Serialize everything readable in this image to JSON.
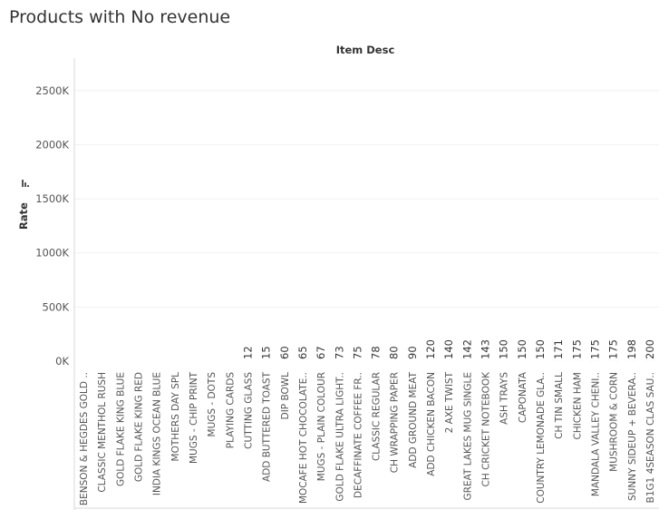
{
  "title": "Products with No revenue",
  "chart_data": {
    "type": "bar",
    "title": "Products with No revenue",
    "column_header": "Item Desc",
    "xlabel": "",
    "ylabel": "Rate",
    "ylim": [
      0,
      2800000
    ],
    "yticks": [
      0,
      500000,
      1000000,
      1500000,
      2000000,
      2500000
    ],
    "ytick_labels": [
      "0K",
      "500K",
      "1000K",
      "1500K",
      "2000K",
      "2500K"
    ],
    "grid": true,
    "categories": [
      "BENSON & HEGDES GOLD ..",
      "CLASSIC MENTHOL RUSH",
      "GOLD FLAKE KING BLUE",
      "GOLD FLAKE KING RED",
      "INDIA KINGS OCEAN BLUE",
      "MOTHERS DAY SPL",
      "MUGS - CHIP PRINT",
      "MUGS - DOTS",
      "PLAYING CARDS",
      "CUTTING GLASS",
      "ADD BUTTERED TOAST",
      "DIP BOWL",
      "MOCAFE HOT CHOCOLATE..",
      "MUGS - PLAIN COLOUR",
      "GOLD FLAKE ULTRA LIGHT..",
      "DECAFFINATE COFFEE FR..",
      "CLASSIC REGULAR",
      "CH WRAPPING PAPER",
      "ADD GROUND MEAT",
      "ADD CHICKEN BACON",
      "2 AXE TWIST",
      "GREAT LAKES MUG SINGLE",
      "CH CRICKET NOTEBOOK",
      "ASH TRAYS",
      "CAPONATA",
      "COUNTRY LEMONADE GLA..",
      "CH TIN SMALL",
      "CHICKEN HAM",
      "MANDALA VALLEY CHENI..",
      "MUSHROOM & CORN",
      "SUNNY SIDEUP + BEVERA..",
      "B1G1 4SEASON CLAS SAU.."
    ],
    "values": [
      null,
      null,
      null,
      null,
      null,
      null,
      null,
      null,
      null,
      12,
      15,
      60,
      65,
      67,
      73,
      75,
      78,
      80,
      90,
      120,
      140,
      142,
      143,
      150,
      150,
      150,
      171,
      175,
      175,
      175,
      198,
      200
    ],
    "value_labels": [
      "",
      "",
      "",
      "",
      "",
      "",
      "",
      "",
      "",
      "12",
      "15",
      "60",
      "65",
      "67",
      "73",
      "75",
      "78",
      "80",
      "90",
      "120",
      "140",
      "142",
      "143",
      "150",
      "150",
      "150",
      "171",
      "175",
      "175",
      "175",
      "198",
      "200"
    ],
    "colors": {
      "gridline": "#f0f0f0",
      "axis": "#d9d9d9",
      "bar": "#4e79a7"
    }
  }
}
